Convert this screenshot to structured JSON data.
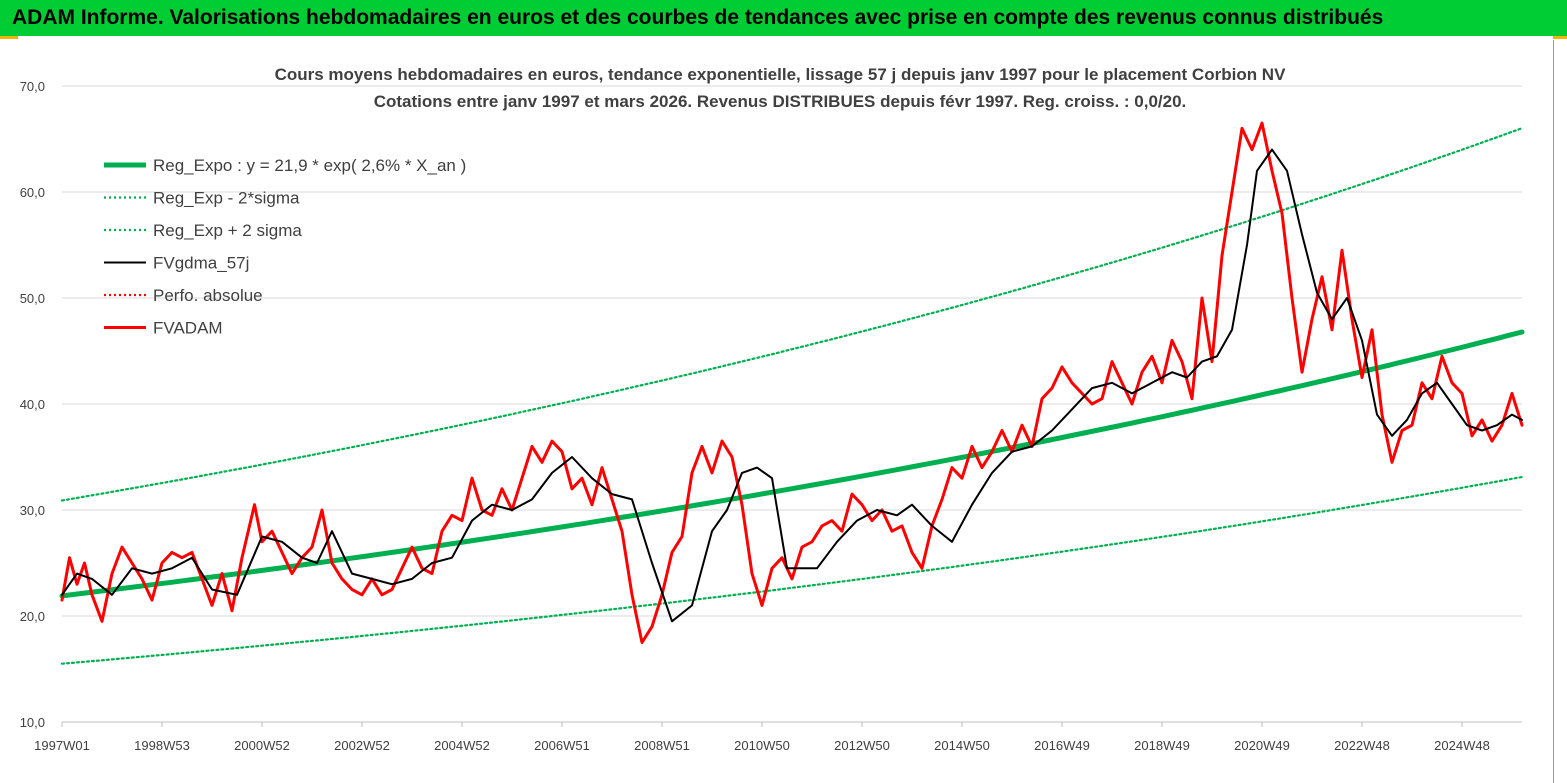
{
  "header": {
    "title": "ADAM Informe. Valorisations hebdomadaires en euros et des courbes de tendances avec prise en compte des revenus connus distribués"
  },
  "colors": {
    "banner": "#00cc33",
    "regression": "#00b050",
    "smoothed": "#000000",
    "price": "#ff0000",
    "perf": "#ff0000"
  },
  "chart_data": {
    "type": "line",
    "title": "Cours moyens hebdomadaires en euros, tendance exponentielle, lissage 57 j depuis janv 1997 pour le placement Corbion NV",
    "subtitle": "Cotations entre janv 1997 et mars 2026. Revenus DISTRIBUES depuis févr 1997. Reg. croiss. : 0,0/20.",
    "xlabel": "",
    "ylabel": "",
    "ylim": [
      10,
      70
    ],
    "xlim": [
      1997.0,
      2026.2
    ],
    "grid": true,
    "legend_position": "top-left",
    "y_ticks": [
      "10,0",
      "20,0",
      "30,0",
      "40,0",
      "50,0",
      "60,0",
      "70,0"
    ],
    "x_ticks": [
      {
        "label": "1997W01",
        "x": 1997.0
      },
      {
        "label": "1998W53",
        "x": 1999.0
      },
      {
        "label": "2000W52",
        "x": 2001.0
      },
      {
        "label": "2002W52",
        "x": 2003.0
      },
      {
        "label": "2004W52",
        "x": 2005.0
      },
      {
        "label": "2006W51",
        "x": 2007.0
      },
      {
        "label": "2008W51",
        "x": 2009.0
      },
      {
        "label": "2010W50",
        "x": 2011.0
      },
      {
        "label": "2012W50",
        "x": 2013.0
      },
      {
        "label": "2014W50",
        "x": 2015.0
      },
      {
        "label": "2016W49",
        "x": 2017.0
      },
      {
        "label": "2018W49",
        "x": 2019.0
      },
      {
        "label": "2020W49",
        "x": 2021.0
      },
      {
        "label": "2022W48",
        "x": 2023.0
      },
      {
        "label": "2024W48",
        "x": 2025.0
      }
    ],
    "series": [
      {
        "name": "Reg_Expo : y = 21,9 * exp( 2,6% *  X_an )",
        "style": "thick-solid",
        "color": "#00b050",
        "x": [
          1997.0,
          2026.2
        ],
        "formula": {
          "a": 21.9,
          "rate": 0.026
        }
      },
      {
        "name": "Reg_Exp - 2*sigma",
        "style": "dotted",
        "color": "#00b050",
        "x": [
          1997.0,
          2026.2
        ],
        "formula": {
          "a": 15.5,
          "rate": 0.026
        }
      },
      {
        "name": "Reg_Exp + 2 sigma",
        "style": "dotted",
        "color": "#00b050",
        "x": [
          1997.0,
          2026.2
        ],
        "formula": {
          "a": 30.9,
          "rate": 0.026
        }
      },
      {
        "name": "FVgdma_57j",
        "style": "solid",
        "color": "#000000",
        "x": [
          1997.0,
          1997.3,
          1997.6,
          1998.0,
          1998.4,
          1998.8,
          1999.2,
          1999.6,
          2000.0,
          2000.5,
          2001.0,
          2001.4,
          2001.8,
          2002.1,
          2002.4,
          2002.8,
          2003.2,
          2003.6,
          2004.0,
          2004.4,
          2004.8,
          2005.2,
          2005.6,
          2006.0,
          2006.4,
          2006.8,
          2007.2,
          2007.6,
          2008.0,
          2008.4,
          2008.8,
          2009.2,
          2009.6,
          2010.0,
          2010.3,
          2010.6,
          2010.9,
          2011.2,
          2011.5,
          2011.8,
          2012.1,
          2012.5,
          2012.9,
          2013.3,
          2013.7,
          2014.0,
          2014.4,
          2014.8,
          2015.2,
          2015.6,
          2016.0,
          2016.4,
          2016.8,
          2017.2,
          2017.6,
          2018.0,
          2018.4,
          2018.8,
          2019.2,
          2019.5,
          2019.8,
          2020.1,
          2020.4,
          2020.7,
          2020.9,
          2021.2,
          2021.5,
          2021.8,
          2022.1,
          2022.4,
          2022.7,
          2023.0,
          2023.3,
          2023.6,
          2023.9,
          2024.2,
          2024.5,
          2024.8,
          2025.1,
          2025.4,
          2025.7,
          2026.0,
          2026.2
        ],
        "y": [
          22.0,
          24.0,
          23.5,
          22.0,
          24.5,
          24.0,
          24.5,
          25.5,
          22.5,
          22.0,
          27.5,
          27.0,
          25.5,
          25.0,
          28.0,
          24.0,
          23.5,
          23.0,
          23.5,
          25.0,
          25.5,
          29.0,
          30.5,
          30.0,
          31.0,
          33.5,
          35.0,
          33.0,
          31.5,
          31.0,
          25.0,
          19.5,
          21.0,
          28.0,
          30.0,
          33.5,
          34.0,
          33.0,
          24.5,
          24.5,
          24.5,
          27.0,
          29.0,
          30.0,
          29.5,
          30.5,
          28.5,
          27.0,
          30.5,
          33.5,
          35.5,
          36.0,
          37.5,
          39.5,
          41.5,
          42.0,
          41.0,
          42.0,
          43.0,
          42.5,
          44.0,
          44.5,
          47.0,
          55.0,
          62.0,
          64.0,
          62.0,
          56.0,
          50.5,
          48.0,
          50.0,
          46.0,
          39.0,
          37.0,
          38.5,
          41.0,
          42.0,
          40.0,
          38.0,
          37.5,
          38.0,
          39.0,
          38.5
        ]
      },
      {
        "name": "Perfo. absolue",
        "style": "dotted",
        "color": "#ff0000",
        "x": [],
        "y": []
      },
      {
        "name": "FVADAM",
        "style": "thick-solid",
        "color": "#ff0000",
        "x": [
          1997.0,
          1997.15,
          1997.3,
          1997.45,
          1997.6,
          1997.8,
          1998.0,
          1998.2,
          1998.4,
          1998.6,
          1998.8,
          1999.0,
          1999.2,
          1999.4,
          1999.6,
          1999.8,
          2000.0,
          2000.2,
          2000.4,
          2000.6,
          2000.85,
          2001.0,
          2001.2,
          2001.4,
          2001.6,
          2001.8,
          2002.0,
          2002.2,
          2002.4,
          2002.6,
          2002.8,
          2003.0,
          2003.2,
          2003.4,
          2003.6,
          2003.8,
          2004.0,
          2004.2,
          2004.4,
          2004.6,
          2004.8,
          2005.0,
          2005.2,
          2005.4,
          2005.6,
          2005.8,
          2006.0,
          2006.2,
          2006.4,
          2006.6,
          2006.8,
          2007.0,
          2007.2,
          2007.4,
          2007.6,
          2007.8,
          2008.0,
          2008.2,
          2008.4,
          2008.6,
          2008.8,
          2009.0,
          2009.2,
          2009.4,
          2009.6,
          2009.8,
          2010.0,
          2010.2,
          2010.4,
          2010.6,
          2010.8,
          2011.0,
          2011.2,
          2011.4,
          2011.6,
          2011.8,
          2012.0,
          2012.2,
          2012.4,
          2012.6,
          2012.8,
          2013.0,
          2013.2,
          2013.4,
          2013.6,
          2013.8,
          2014.0,
          2014.2,
          2014.4,
          2014.6,
          2014.8,
          2015.0,
          2015.2,
          2015.4,
          2015.6,
          2015.8,
          2016.0,
          2016.2,
          2016.4,
          2016.6,
          2016.8,
          2017.0,
          2017.2,
          2017.4,
          2017.6,
          2017.8,
          2018.0,
          2018.2,
          2018.4,
          2018.6,
          2018.8,
          2019.0,
          2019.2,
          2019.4,
          2019.6,
          2019.8,
          2020.0,
          2020.2,
          2020.4,
          2020.6,
          2020.8,
          2021.0,
          2021.2,
          2021.4,
          2021.6,
          2021.8,
          2022.0,
          2022.2,
          2022.4,
          2022.6,
          2022.8,
          2023.0,
          2023.2,
          2023.4,
          2023.6,
          2023.8,
          2024.0,
          2024.2,
          2024.4,
          2024.6,
          2024.8,
          2025.0,
          2025.2,
          2025.4,
          2025.6,
          2025.8,
          2026.0,
          2026.2
        ],
        "y": [
          21.5,
          25.5,
          23.0,
          25.0,
          22.0,
          19.5,
          24.0,
          26.5,
          25.0,
          23.5,
          21.5,
          25.0,
          26.0,
          25.5,
          26.0,
          23.5,
          21.0,
          24.0,
          20.5,
          25.5,
          30.5,
          27.0,
          28.0,
          26.0,
          24.0,
          25.5,
          26.5,
          30.0,
          25.0,
          23.5,
          22.5,
          22.0,
          23.5,
          22.0,
          22.5,
          24.5,
          26.5,
          24.5,
          24.0,
          28.0,
          29.5,
          29.0,
          33.0,
          30.0,
          29.5,
          32.0,
          30.0,
          33.0,
          36.0,
          34.5,
          36.5,
          35.5,
          32.0,
          33.0,
          30.5,
          34.0,
          31.0,
          28.0,
          22.0,
          17.5,
          19.0,
          22.0,
          26.0,
          27.5,
          33.5,
          36.0,
          33.5,
          36.5,
          35.0,
          30.5,
          24.0,
          21.0,
          24.5,
          25.5,
          23.5,
          26.5,
          27.0,
          28.5,
          29.0,
          28.0,
          31.5,
          30.5,
          29.0,
          30.0,
          28.0,
          28.5,
          26.0,
          24.5,
          28.5,
          31.0,
          34.0,
          33.0,
          36.0,
          34.0,
          35.5,
          37.5,
          35.5,
          38.0,
          36.0,
          40.5,
          41.5,
          43.5,
          42.0,
          41.0,
          40.0,
          40.5,
          44.0,
          42.0,
          40.0,
          43.0,
          44.5,
          42.0,
          46.0,
          44.0,
          40.5,
          50.0,
          44.0,
          54.0,
          60.0,
          66.0,
          64.0,
          66.5,
          62.0,
          58.0,
          50.0,
          43.0,
          48.0,
          52.0,
          47.0,
          54.5,
          48.0,
          42.5,
          47.0,
          39.0,
          34.5,
          37.5,
          38.0,
          42.0,
          40.5,
          44.5,
          42.0,
          41.0,
          37.0,
          38.5,
          36.5,
          38.0,
          41.0,
          38.0
        ]
      }
    ]
  }
}
